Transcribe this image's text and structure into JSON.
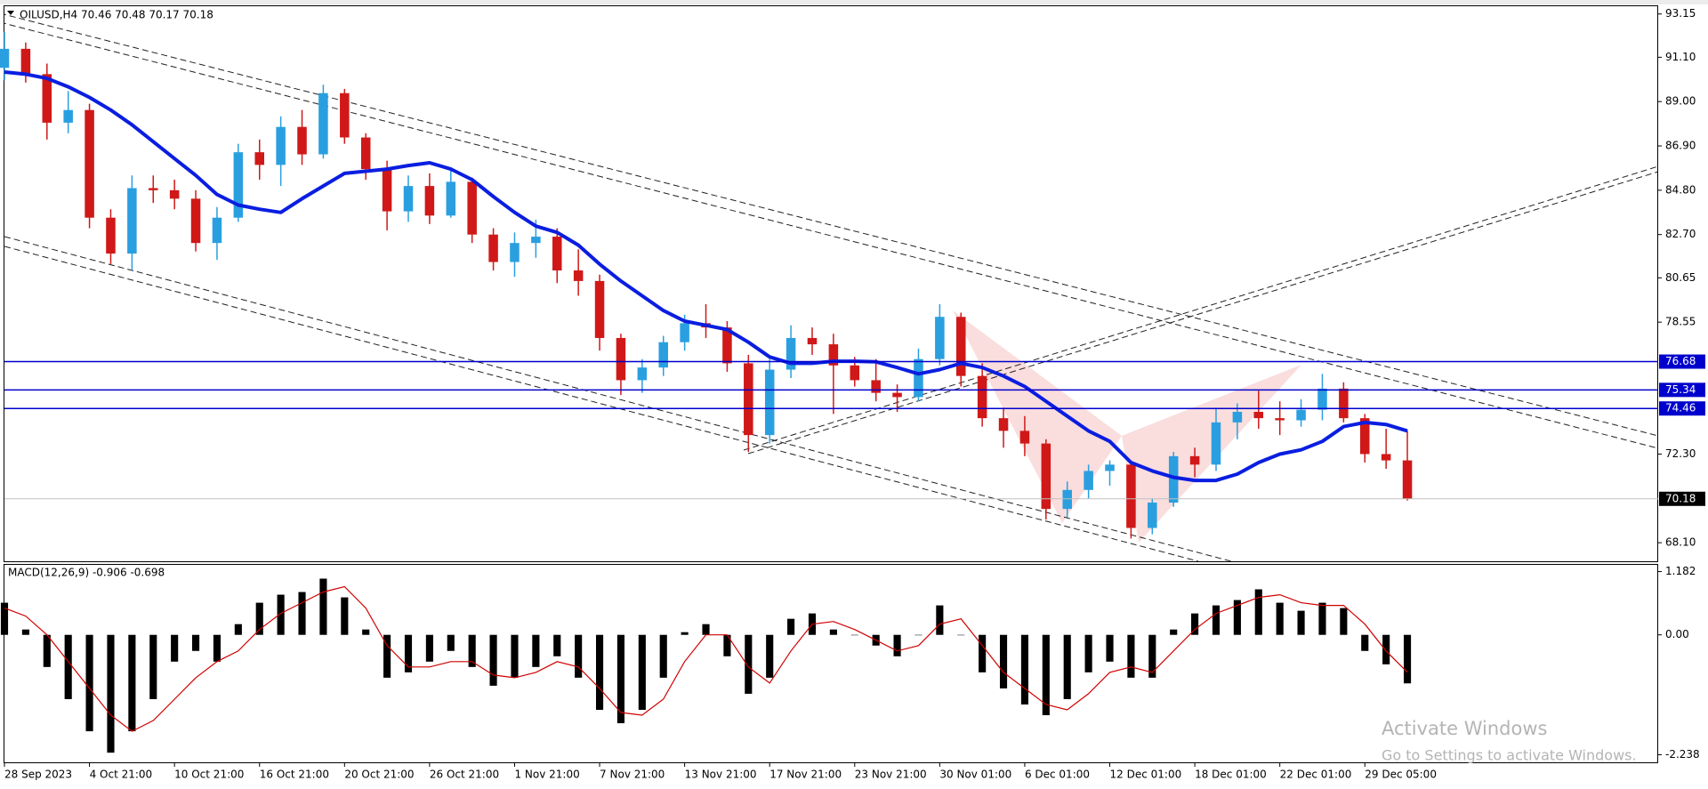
{
  "chart_data": [
    {
      "type": "candlestick",
      "title": "OILUSD,H4  70.46 70.48 70.17 70.18",
      "xlim": [
        0,
        77.8
      ],
      "ylim": [
        67.22,
        93.56
      ],
      "yticks": [
        93.15,
        {
          "value": 91.1,
          "label": "91.10"
        },
        {
          "value": 89,
          "label": "89.00"
        },
        {
          "value": 86.9,
          "label": "86.90"
        },
        {
          "value": 84.8,
          "label": "84.80"
        },
        {
          "value": 82.7,
          "label": "82.70"
        },
        80.65,
        78.55,
        {
          "value": 72.3,
          "label": "72.30"
        },
        {
          "value": 68.1,
          "label": "68.10"
        }
      ],
      "up_color": "#2a9fe0",
      "down_color": "#d01818",
      "open": [
        90.6,
        91.5,
        90.3,
        88.0,
        88.6,
        83.5,
        81.8,
        84.9,
        84.8,
        84.4,
        82.3,
        83.5,
        86.6,
        86.0,
        87.8,
        86.5,
        89.4,
        87.3,
        85.8,
        83.8,
        85.0,
        83.6,
        85.2,
        82.7,
        81.4,
        82.3,
        82.6,
        81.0,
        80.5,
        77.8,
        75.8,
        76.4,
        77.6,
        78.5,
        78.3,
        76.6,
        73.2,
        76.3,
        77.8,
        77.5,
        76.5,
        75.8,
        75.2,
        75.0,
        76.8,
        78.8,
        76.0,
        74.0,
        73.4,
        72.8,
        69.7,
        70.6,
        71.5,
        71.8,
        68.8,
        70.0,
        72.2,
        71.8,
        73.8,
        74.3,
        74.0,
        73.9,
        74.4,
        75.4,
        74.0,
        72.3,
        72.0
      ],
      "high": [
        92.3,
        91.8,
        90.8,
        89.5,
        88.9,
        83.9,
        85.5,
        85.5,
        85.3,
        84.8,
        84.0,
        87.0,
        87.2,
        88.3,
        88.6,
        89.8,
        89.6,
        87.5,
        86.2,
        85.5,
        85.6,
        85.8,
        85.4,
        83.0,
        82.8,
        83.4,
        83.0,
        82.0,
        80.8,
        78.0,
        76.8,
        77.9,
        78.9,
        79.4,
        78.6,
        77.0,
        76.8,
        78.4,
        78.3,
        78.0,
        76.9,
        76.8,
        75.6,
        77.3,
        79.4,
        79.0,
        76.6,
        74.5,
        74.1,
        73.0,
        71.0,
        71.8,
        72.0,
        72.0,
        70.2,
        72.4,
        72.6,
        74.5,
        74.7,
        75.3,
        74.8,
        74.9,
        76.1,
        75.7,
        74.2,
        73.5,
        73.4
      ],
      "low": [
        90.0,
        89.9,
        87.2,
        87.5,
        83.0,
        81.3,
        81.0,
        84.2,
        83.9,
        81.9,
        81.5,
        83.3,
        85.3,
        85.0,
        86.0,
        86.3,
        87.0,
        85.3,
        82.9,
        83.3,
        83.2,
        83.5,
        82.3,
        81.0,
        80.7,
        81.6,
        80.4,
        79.8,
        77.2,
        75.1,
        75.2,
        76.0,
        77.2,
        77.8,
        76.2,
        72.4,
        72.8,
        75.9,
        77.0,
        74.2,
        75.5,
        74.8,
        74.3,
        74.8,
        76.5,
        75.5,
        73.6,
        72.6,
        72.2,
        69.2,
        69.3,
        70.2,
        70.8,
        68.3,
        68.5,
        69.8,
        71.2,
        71.5,
        73.0,
        73.5,
        73.2,
        73.6,
        73.9,
        73.8,
        71.9,
        71.6,
        70.1
      ],
      "close": [
        91.5,
        90.3,
        88.0,
        88.6,
        83.5,
        81.8,
        84.9,
        84.8,
        84.4,
        82.3,
        83.5,
        86.6,
        86.0,
        87.8,
        86.5,
        89.4,
        87.3,
        85.8,
        83.8,
        85.0,
        83.6,
        85.2,
        82.7,
        81.4,
        82.3,
        82.6,
        81.0,
        80.5,
        77.8,
        75.8,
        76.4,
        77.6,
        78.5,
        78.3,
        76.6,
        73.2,
        76.3,
        77.8,
        77.5,
        76.5,
        75.8,
        75.2,
        75.0,
        76.8,
        78.8,
        76.0,
        74.0,
        73.4,
        72.8,
        69.7,
        70.6,
        71.5,
        71.8,
        68.8,
        70.0,
        72.2,
        71.8,
        73.8,
        74.3,
        74.0,
        73.9,
        74.4,
        75.4,
        74.0,
        72.3,
        72.0,
        70.18
      ],
      "ma": {
        "color": "#0a1ee0",
        "values": [
          90.4,
          90.3,
          90.1,
          89.7,
          89.2,
          88.6,
          87.9,
          87.1,
          86.3,
          85.5,
          84.6,
          84.1,
          83.9,
          83.75,
          84.4,
          85.0,
          85.6,
          85.7,
          85.8,
          85.97,
          86.1,
          85.8,
          85.3,
          84.5,
          83.75,
          83.1,
          82.8,
          82.2,
          81.3,
          80.5,
          79.8,
          79.1,
          78.6,
          78.4,
          78.2,
          77.6,
          76.9,
          76.6,
          76.6,
          76.7,
          76.7,
          76.67,
          76.4,
          76.1,
          76.3,
          76.6,
          76.4,
          76.0,
          75.5,
          74.8,
          74.1,
          73.4,
          72.9,
          71.9,
          71.5,
          71.2,
          71.05,
          71.05,
          71.35,
          71.9,
          72.3,
          72.5,
          72.9,
          73.6,
          73.8,
          73.7,
          73.4
        ]
      },
      "levels": [
        76.68,
        75.34,
        74.46
      ],
      "level_color": "#0000cc",
      "last_price": 70.18
    },
    {
      "type": "macd",
      "title": "MACD(12,26,9) -0.906 -0.698",
      "xlim": [
        0,
        77.8
      ],
      "ylim": [
        -2.38,
        1.324
      ],
      "yticks": [
        1.182,
        {
          "value": 0,
          "label": "0.00"
        },
        -2.238
      ],
      "xticks": [
        {
          "value": 0,
          "label": "28 Sep 2023"
        },
        {
          "value": 4,
          "label": "4 Oct 21:00"
        },
        {
          "value": 8,
          "label": "10 Oct 21:00"
        },
        {
          "value": 12,
          "label": "16 Oct 21:00"
        },
        {
          "value": 16,
          "label": "20 Oct 21:00"
        },
        {
          "value": 20,
          "label": "26 Oct 21:00"
        },
        {
          "value": 24,
          "label": "1 Nov 21:00"
        },
        {
          "value": 28,
          "label": "7 Nov 21:00"
        },
        {
          "value": 32,
          "label": "13 Nov 21:00"
        },
        {
          "value": 36,
          "label": "17 Nov 21:00"
        },
        {
          "value": 40,
          "label": "23 Nov 21:00"
        },
        {
          "value": 44,
          "label": "30 Nov 01:00"
        },
        {
          "value": 48,
          "label": "6 Dec 01:00"
        },
        {
          "value": 52,
          "label": "12 Dec 01:00"
        },
        {
          "value": 56,
          "label": "18 Dec 01:00"
        },
        {
          "value": 60,
          "label": "22 Dec 01:00"
        },
        {
          "value": 64,
          "label": "29 Dec 05:00"
        }
      ],
      "color": "#000000",
      "signal_color": "#d00000",
      "values": [
        0.6,
        0.1,
        -0.6,
        -1.2,
        -1.8,
        -2.2,
        -1.8,
        -1.2,
        -0.5,
        -0.3,
        -0.5,
        0.2,
        0.6,
        0.75,
        0.8,
        1.05,
        0.7,
        0.1,
        -0.8,
        -0.7,
        -0.5,
        -0.3,
        -0.6,
        -0.95,
        -0.8,
        -0.6,
        -0.4,
        -0.8,
        -1.4,
        -1.65,
        -1.4,
        -0.8,
        0.05,
        0.2,
        -0.4,
        -1.1,
        -0.8,
        0.3,
        0.4,
        0.1,
        0.0,
        -0.2,
        -0.4,
        0.0,
        0.55,
        0.0,
        -0.7,
        -1.0,
        -1.3,
        -1.5,
        -1.2,
        -0.7,
        -0.5,
        -0.8,
        -0.8,
        0.1,
        0.4,
        0.55,
        0.65,
        0.85,
        0.6,
        0.45,
        0.6,
        0.5,
        -0.3,
        -0.55,
        -0.906
      ],
      "signal": [
        0.5,
        0.35,
        0.0,
        -0.5,
        -1.0,
        -1.5,
        -1.8,
        -1.6,
        -1.2,
        -0.8,
        -0.5,
        -0.3,
        0.1,
        0.4,
        0.6,
        0.8,
        0.9,
        0.5,
        -0.2,
        -0.6,
        -0.6,
        -0.5,
        -0.5,
        -0.75,
        -0.8,
        -0.7,
        -0.5,
        -0.6,
        -1.0,
        -1.45,
        -1.5,
        -1.2,
        -0.5,
        0.0,
        0.0,
        -0.6,
        -0.9,
        -0.3,
        0.2,
        0.25,
        0.1,
        -0.1,
        -0.3,
        -0.2,
        0.2,
        0.3,
        -0.2,
        -0.7,
        -1.0,
        -1.3,
        -1.4,
        -1.1,
        -0.7,
        -0.6,
        -0.7,
        -0.3,
        0.1,
        0.4,
        0.55,
        0.7,
        0.75,
        0.6,
        0.55,
        0.55,
        0.2,
        -0.3,
        -0.698
      ]
    }
  ],
  "watermark": {
    "title": "Activate Windows",
    "subtitle": "Go to Settings to activate Windows."
  }
}
